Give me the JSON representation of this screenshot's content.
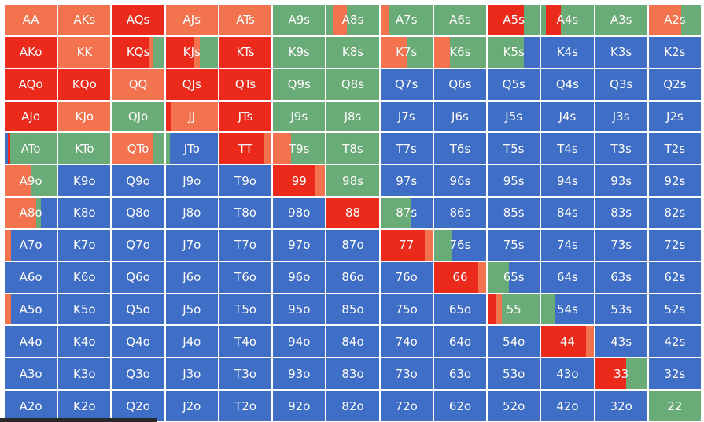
{
  "colors": {
    "raise": "#ec2a1c",
    "call": "#f3734e",
    "fold": "#3f6ec6",
    "check": "#6aac77"
  },
  "ranks": [
    "A",
    "K",
    "Q",
    "J",
    "T",
    "9",
    "8",
    "7",
    "6",
    "5",
    "4",
    "3",
    "2"
  ],
  "hands": [
    [
      "AA",
      "AKs",
      "AQs",
      "AJs",
      "ATs",
      "A9s",
      "A8s",
      "A7s",
      "A6s",
      "A5s",
      "A4s",
      "A3s",
      "A2s"
    ],
    [
      "AKo",
      "KK",
      "KQs",
      "KJs",
      "KTs",
      "K9s",
      "K8s",
      "K7s",
      "K6s",
      "K5s",
      "K4s",
      "K3s",
      "K2s"
    ],
    [
      "AQo",
      "KQo",
      "QQ",
      "QJs",
      "QTs",
      "Q9s",
      "Q8s",
      "Q7s",
      "Q6s",
      "Q5s",
      "Q4s",
      "Q3s",
      "Q2s"
    ],
    [
      "AJo",
      "KJo",
      "QJo",
      "JJ",
      "JTs",
      "J9s",
      "J8s",
      "J7s",
      "J6s",
      "J5s",
      "J4s",
      "J3s",
      "J2s"
    ],
    [
      "ATo",
      "KTo",
      "QTo",
      "JTo",
      "TT",
      "T9s",
      "T8s",
      "T7s",
      "T6s",
      "T5s",
      "T4s",
      "T3s",
      "T2s"
    ],
    [
      "A9o",
      "K9o",
      "Q9o",
      "J9o",
      "T9o",
      "99",
      "98s",
      "97s",
      "96s",
      "95s",
      "94s",
      "93s",
      "92s"
    ],
    [
      "A8o",
      "K8o",
      "Q8o",
      "J8o",
      "T8o",
      "98o",
      "88",
      "87s",
      "86s",
      "85s",
      "84s",
      "83s",
      "82s"
    ],
    [
      "A7o",
      "K7o",
      "Q7o",
      "J7o",
      "T7o",
      "97o",
      "87o",
      "77",
      "76s",
      "75s",
      "74s",
      "73s",
      "72s"
    ],
    [
      "A6o",
      "K6o",
      "Q6o",
      "J6o",
      "T6o",
      "96o",
      "86o",
      "76o",
      "66",
      "65s",
      "64s",
      "63s",
      "62s"
    ],
    [
      "A5o",
      "K5o",
      "Q5o",
      "J5o",
      "T5o",
      "95o",
      "85o",
      "75o",
      "65o",
      "55",
      "54s",
      "53s",
      "52s"
    ],
    [
      "A4o",
      "K4o",
      "Q4o",
      "J4o",
      "T4o",
      "94o",
      "84o",
      "74o",
      "64o",
      "54o",
      "44",
      "43s",
      "42s"
    ],
    [
      "A3o",
      "K3o",
      "Q3o",
      "J3o",
      "T3o",
      "93o",
      "83o",
      "73o",
      "63o",
      "53o",
      "43o",
      "33",
      "32s"
    ],
    [
      "A2o",
      "K2o",
      "Q2o",
      "J2o",
      "T2o",
      "92o",
      "82o",
      "72o",
      "62o",
      "52o",
      "42o",
      "32o",
      "22"
    ]
  ],
  "mix": {
    "AA": [
      [
        "call",
        1
      ]
    ],
    "AKs": [
      [
        "call",
        1
      ]
    ],
    "AQs": [
      [
        "raise",
        1
      ]
    ],
    "AJs": [
      [
        "call",
        1
      ]
    ],
    "ATs": [
      [
        "call",
        1
      ]
    ],
    "A9s": [
      [
        "check",
        1
      ]
    ],
    "A8s": [
      [
        "check",
        0.12
      ],
      [
        "call",
        0.26
      ],
      [
        "check",
        0.62
      ]
    ],
    "A7s": [
      [
        "call",
        0.16
      ],
      [
        "check",
        0.84
      ]
    ],
    "A6s": [
      [
        "check",
        1
      ]
    ],
    "A5s": [
      [
        "raise",
        0.7
      ],
      [
        "check",
        0.3
      ]
    ],
    "A4s": [
      [
        "check",
        0.08
      ],
      [
        "raise",
        0.3
      ],
      [
        "check",
        0.62
      ]
    ],
    "A3s": [
      [
        "check",
        1
      ]
    ],
    "A2s": [
      [
        "call",
        0.62
      ],
      [
        "check",
        0.38
      ]
    ],
    "AKo": [
      [
        "raise",
        1
      ]
    ],
    "KK": [
      [
        "call",
        1
      ]
    ],
    "KQs": [
      [
        "raise",
        0.7
      ],
      [
        "call",
        0.1
      ],
      [
        "check",
        0.2
      ]
    ],
    "KJs": [
      [
        "raise",
        0.55
      ],
      [
        "call",
        0.1
      ],
      [
        "check",
        0.35
      ]
    ],
    "KTs": [
      [
        "raise",
        1
      ]
    ],
    "K9s": [
      [
        "check",
        1
      ]
    ],
    "K8s": [
      [
        "check",
        1
      ]
    ],
    "K7s": [
      [
        "call",
        0.5
      ],
      [
        "check",
        0.5
      ]
    ],
    "K6s": [
      [
        "call",
        0.3
      ],
      [
        "check",
        0.7
      ]
    ],
    "K5s": [
      [
        "check",
        0.7
      ],
      [
        "fold",
        0.3
      ]
    ],
    "K4s": [
      [
        "fold",
        1
      ]
    ],
    "K3s": [
      [
        "fold",
        1
      ]
    ],
    "K2s": [
      [
        "fold",
        1
      ]
    ],
    "AQo": [
      [
        "raise",
        1
      ]
    ],
    "KQo": [
      [
        "raise",
        1
      ]
    ],
    "QQ": [
      [
        "call",
        1
      ]
    ],
    "QJs": [
      [
        "raise",
        1
      ]
    ],
    "QTs": [
      [
        "raise",
        1
      ]
    ],
    "Q9s": [
      [
        "check",
        1
      ]
    ],
    "Q8s": [
      [
        "check",
        1
      ]
    ],
    "Q7s": [
      [
        "fold",
        1
      ]
    ],
    "Q6s": [
      [
        "fold",
        1
      ]
    ],
    "Q5s": [
      [
        "fold",
        1
      ]
    ],
    "Q4s": [
      [
        "fold",
        1
      ]
    ],
    "Q3s": [
      [
        "fold",
        1
      ]
    ],
    "Q2s": [
      [
        "fold",
        1
      ]
    ],
    "AJo": [
      [
        "raise",
        1
      ]
    ],
    "KJo": [
      [
        "call",
        1
      ]
    ],
    "QJo": [
      [
        "check",
        1
      ]
    ],
    "JJ": [
      [
        "raise",
        0.1
      ],
      [
        "call",
        0.9
      ]
    ],
    "JTs": [
      [
        "raise",
        1
      ]
    ],
    "J9s": [
      [
        "check",
        1
      ]
    ],
    "J8s": [
      [
        "check",
        1
      ]
    ],
    "J7s": [
      [
        "fold",
        1
      ]
    ],
    "J6s": [
      [
        "fold",
        1
      ]
    ],
    "J5s": [
      [
        "fold",
        1
      ]
    ],
    "J4s": [
      [
        "fold",
        1
      ]
    ],
    "J3s": [
      [
        "fold",
        1
      ]
    ],
    "J2s": [
      [
        "fold",
        1
      ]
    ],
    "ATo": [
      [
        "fold",
        0.06
      ],
      [
        "raise",
        0.04
      ],
      [
        "check",
        0.9
      ]
    ],
    "KTo": [
      [
        "check",
        1
      ]
    ],
    "QTo": [
      [
        "call",
        0.8
      ],
      [
        "check",
        0.2
      ]
    ],
    "JTo": [
      [
        "check",
        0.08
      ],
      [
        "fold",
        0.92
      ]
    ],
    "TT": [
      [
        "raise",
        0.85
      ],
      [
        "call",
        0.15
      ]
    ],
    "T9s": [
      [
        "call",
        0.35
      ],
      [
        "check",
        0.65
      ]
    ],
    "T8s": [
      [
        "check",
        1
      ]
    ],
    "T7s": [
      [
        "fold",
        1
      ]
    ],
    "T6s": [
      [
        "fold",
        1
      ]
    ],
    "T5s": [
      [
        "fold",
        1
      ]
    ],
    "T4s": [
      [
        "fold",
        1
      ]
    ],
    "T3s": [
      [
        "fold",
        1
      ]
    ],
    "T2s": [
      [
        "fold",
        1
      ]
    ],
    "A9o": [
      [
        "call",
        0.5
      ],
      [
        "check",
        0.5
      ]
    ],
    "K9o": [
      [
        "fold",
        1
      ]
    ],
    "Q9o": [
      [
        "fold",
        1
      ]
    ],
    "J9o": [
      [
        "fold",
        1
      ]
    ],
    "T9o": [
      [
        "fold",
        1
      ]
    ],
    "99": [
      [
        "raise",
        0.8
      ],
      [
        "call",
        0.2
      ]
    ],
    "98s": [
      [
        "check",
        1
      ]
    ],
    "97s": [
      [
        "fold",
        1
      ]
    ],
    "96s": [
      [
        "fold",
        1
      ]
    ],
    "95s": [
      [
        "fold",
        1
      ]
    ],
    "94s": [
      [
        "fold",
        1
      ]
    ],
    "93s": [
      [
        "fold",
        1
      ]
    ],
    "92s": [
      [
        "fold",
        1
      ]
    ],
    "A8o": [
      [
        "call",
        0.6
      ],
      [
        "check",
        0.1
      ],
      [
        "fold",
        0.3
      ]
    ],
    "K8o": [
      [
        "fold",
        1
      ]
    ],
    "Q8o": [
      [
        "fold",
        1
      ]
    ],
    "J8o": [
      [
        "fold",
        1
      ]
    ],
    "T8o": [
      [
        "fold",
        1
      ]
    ],
    "98o": [
      [
        "fold",
        1
      ]
    ],
    "88": [
      [
        "raise",
        1
      ]
    ],
    "87s": [
      [
        "check",
        0.6
      ],
      [
        "fold",
        0.4
      ]
    ],
    "86s": [
      [
        "fold",
        1
      ]
    ],
    "85s": [
      [
        "fold",
        1
      ]
    ],
    "84s": [
      [
        "fold",
        1
      ]
    ],
    "83s": [
      [
        "fold",
        1
      ]
    ],
    "82s": [
      [
        "fold",
        1
      ]
    ],
    "A7o": [
      [
        "call",
        0.12
      ],
      [
        "fold",
        0.88
      ]
    ],
    "K7o": [
      [
        "fold",
        1
      ]
    ],
    "Q7o": [
      [
        "fold",
        1
      ]
    ],
    "J7o": [
      [
        "fold",
        1
      ]
    ],
    "T7o": [
      [
        "fold",
        1
      ]
    ],
    "97o": [
      [
        "fold",
        1
      ]
    ],
    "87o": [
      [
        "fold",
        1
      ]
    ],
    "77": [
      [
        "raise",
        0.85
      ],
      [
        "call",
        0.15
      ]
    ],
    "76s": [
      [
        "check",
        0.35
      ],
      [
        "fold",
        0.65
      ]
    ],
    "75s": [
      [
        "fold",
        1
      ]
    ],
    "74s": [
      [
        "fold",
        1
      ]
    ],
    "73s": [
      [
        "fold",
        1
      ]
    ],
    "72s": [
      [
        "fold",
        1
      ]
    ],
    "A6o": [
      [
        "fold",
        1
      ]
    ],
    "K6o": [
      [
        "fold",
        1
      ]
    ],
    "Q6o": [
      [
        "fold",
        1
      ]
    ],
    "J6o": [
      [
        "fold",
        1
      ]
    ],
    "T6o": [
      [
        "fold",
        1
      ]
    ],
    "96o": [
      [
        "fold",
        1
      ]
    ],
    "86o": [
      [
        "fold",
        1
      ]
    ],
    "76o": [
      [
        "fold",
        1
      ]
    ],
    "66": [
      [
        "raise",
        0.85
      ],
      [
        "call",
        0.15
      ]
    ],
    "65s": [
      [
        "check",
        0.4
      ],
      [
        "fold",
        0.6
      ]
    ],
    "64s": [
      [
        "fold",
        1
      ]
    ],
    "63s": [
      [
        "fold",
        1
      ]
    ],
    "62s": [
      [
        "fold",
        1
      ]
    ],
    "A5o": [
      [
        "call",
        0.12
      ],
      [
        "fold",
        0.88
      ]
    ],
    "K5o": [
      [
        "fold",
        1
      ]
    ],
    "Q5o": [
      [
        "fold",
        1
      ]
    ],
    "J5o": [
      [
        "fold",
        1
      ]
    ],
    "T5o": [
      [
        "fold",
        1
      ]
    ],
    "95o": [
      [
        "fold",
        1
      ]
    ],
    "85o": [
      [
        "fold",
        1
      ]
    ],
    "75o": [
      [
        "fold",
        1
      ]
    ],
    "65o": [
      [
        "fold",
        1
      ]
    ],
    "55": [
      [
        "raise",
        0.15
      ],
      [
        "call",
        0.12
      ],
      [
        "check",
        0.73
      ]
    ],
    "54s": [
      [
        "check",
        0.25
      ],
      [
        "fold",
        0.75
      ]
    ],
    "53s": [
      [
        "fold",
        1
      ]
    ],
    "52s": [
      [
        "fold",
        1
      ]
    ],
    "A4o": [
      [
        "fold",
        1
      ]
    ],
    "K4o": [
      [
        "fold",
        1
      ]
    ],
    "Q4o": [
      [
        "fold",
        1
      ]
    ],
    "J4o": [
      [
        "fold",
        1
      ]
    ],
    "T4o": [
      [
        "fold",
        1
      ]
    ],
    "94o": [
      [
        "fold",
        1
      ]
    ],
    "84o": [
      [
        "fold",
        1
      ]
    ],
    "74o": [
      [
        "fold",
        1
      ]
    ],
    "64o": [
      [
        "fold",
        1
      ]
    ],
    "54o": [
      [
        "fold",
        1
      ]
    ],
    "44": [
      [
        "raise",
        0.85
      ],
      [
        "call",
        0.15
      ]
    ],
    "43s": [
      [
        "fold",
        1
      ]
    ],
    "42s": [
      [
        "fold",
        1
      ]
    ],
    "A3o": [
      [
        "fold",
        1
      ]
    ],
    "K3o": [
      [
        "fold",
        1
      ]
    ],
    "Q3o": [
      [
        "fold",
        1
      ]
    ],
    "J3o": [
      [
        "fold",
        1
      ]
    ],
    "T3o": [
      [
        "fold",
        1
      ]
    ],
    "93o": [
      [
        "fold",
        1
      ]
    ],
    "83o": [
      [
        "fold",
        1
      ]
    ],
    "73o": [
      [
        "fold",
        1
      ]
    ],
    "63o": [
      [
        "fold",
        1
      ]
    ],
    "53o": [
      [
        "fold",
        1
      ]
    ],
    "43o": [
      [
        "fold",
        1
      ]
    ],
    "33": [
      [
        "raise",
        0.6
      ],
      [
        "check",
        0.4
      ]
    ],
    "32s": [
      [
        "fold",
        1
      ]
    ],
    "A2o": [
      [
        "fold",
        1
      ]
    ],
    "K2o": [
      [
        "fold",
        1
      ]
    ],
    "Q2o": [
      [
        "fold",
        1
      ]
    ],
    "J2o": [
      [
        "fold",
        1
      ]
    ],
    "T2o": [
      [
        "fold",
        1
      ]
    ],
    "92o": [
      [
        "fold",
        1
      ]
    ],
    "82o": [
      [
        "fold",
        1
      ]
    ],
    "72o": [
      [
        "fold",
        1
      ]
    ],
    "62o": [
      [
        "fold",
        1
      ]
    ],
    "52o": [
      [
        "fold",
        1
      ]
    ],
    "42o": [
      [
        "fold",
        1
      ]
    ],
    "32o": [
      [
        "fold",
        1
      ]
    ],
    "22": [
      [
        "check",
        1
      ]
    ]
  }
}
